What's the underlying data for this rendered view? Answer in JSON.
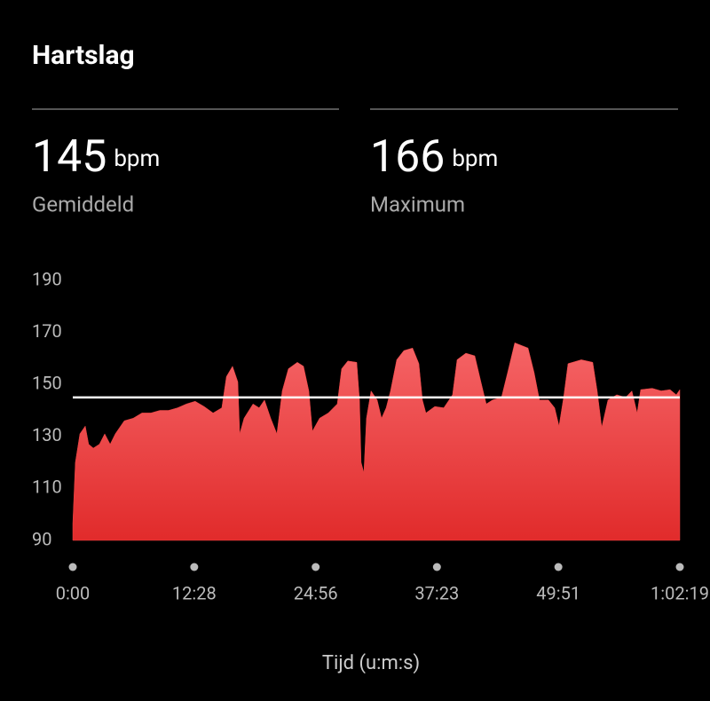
{
  "header": {
    "title": "Hartslag",
    "stats": [
      {
        "value": 145,
        "unit": "bpm",
        "label": "Gemiddeld"
      },
      {
        "value": 166,
        "unit": "bpm",
        "label": "Maximum"
      }
    ]
  },
  "chart_data": {
    "type": "area",
    "color": "#ee4444",
    "line_color": "#ffffff",
    "x_label": "Tijd (u:m:s)",
    "x": [
      0,
      16,
      44,
      77,
      98,
      126,
      164,
      197,
      230,
      262,
      317,
      372,
      426,
      481,
      536,
      590,
      645,
      700,
      754,
      809,
      864,
      918,
      946,
      984,
      1017,
      1028,
      1055,
      1110,
      1148,
      1181,
      1219,
      1257,
      1290,
      1328,
      1383,
      1421,
      1454,
      1476,
      1520,
      1574,
      1629,
      1656,
      1694,
      1749,
      1766,
      1776,
      1793,
      1809,
      1837,
      1875,
      1902,
      1930,
      1957,
      1995,
      2039,
      2093,
      2132,
      2154,
      2175,
      2230,
      2285,
      2339,
      2367,
      2421,
      2476,
      2514,
      2547,
      2585,
      2640,
      2678,
      2722,
      2804,
      2842,
      2875,
      2930,
      2968,
      2995,
      3023,
      3050,
      3132,
      3203,
      3230,
      3258,
      3296,
      3351,
      3405,
      3444,
      3476,
      3498,
      3569,
      3624,
      3679,
      3717,
      3739
    ],
    "values": [
      96.5,
      120,
      131,
      134,
      127,
      125.5,
      127,
      131,
      127,
      131,
      136,
      137,
      139,
      139,
      140,
      140,
      141,
      142.5,
      143.5,
      141.5,
      139,
      141,
      153,
      157,
      151,
      131,
      137,
      142.5,
      141,
      144,
      137,
      131,
      147.5,
      156,
      158.5,
      157,
      147.5,
      132,
      137,
      139,
      142.5,
      156,
      159,
      158.5,
      144,
      120,
      116,
      137,
      147.5,
      144,
      137,
      141,
      147.5,
      159.5,
      163,
      164,
      158,
      144,
      139,
      141.5,
      141,
      146,
      159.5,
      162,
      161,
      151,
      142.5,
      144,
      145,
      154.5,
      166,
      164,
      154.5,
      144,
      144,
      141,
      134,
      145,
      158,
      159.5,
      158.5,
      147.5,
      133.5,
      144,
      146,
      145,
      147.5,
      139,
      148,
      148.5,
      147.5,
      148,
      146,
      148
    ],
    "xlim": [
      0,
      3739
    ],
    "xticks": [
      {
        "value": 0,
        "label": "0:00"
      },
      {
        "value": 748,
        "label": "12:28"
      },
      {
        "value": 1496,
        "label": "24:56"
      },
      {
        "value": 2243,
        "label": "37:23"
      },
      {
        "value": 2991,
        "label": "49:51"
      },
      {
        "value": 3739,
        "label": "1:02:19"
      }
    ],
    "ylim": [
      90,
      190
    ],
    "yticks": [
      90,
      110,
      130,
      150,
      170,
      190
    ]
  }
}
